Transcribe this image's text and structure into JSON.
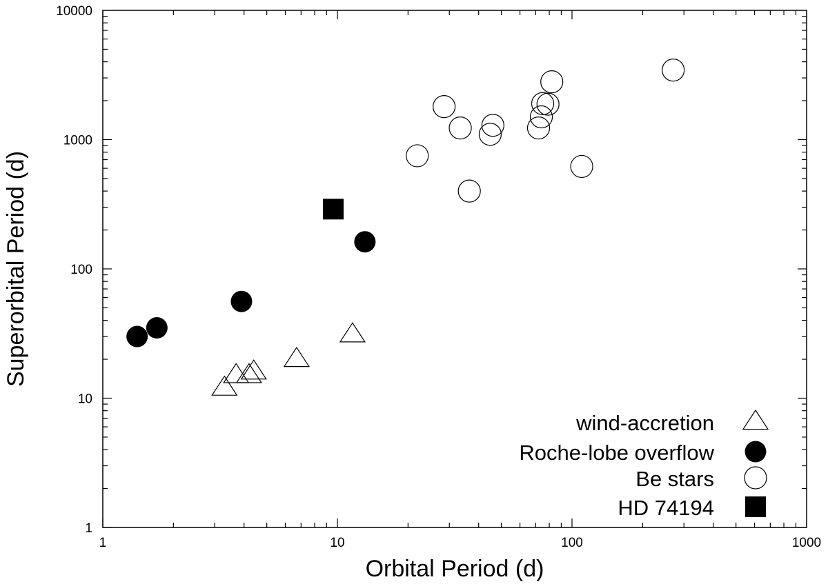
{
  "chart_data": {
    "type": "scatter",
    "title": "",
    "xlabel": "Orbital Period (d)",
    "ylabel": "Superorbital Period (d)",
    "xscale": "log",
    "yscale": "log",
    "xlim": [
      1,
      1000
    ],
    "ylim": [
      1,
      10000
    ],
    "xticks": [
      {
        "value": 1,
        "label": "1"
      },
      {
        "value": 10,
        "label": "10"
      },
      {
        "value": 100,
        "label": "100"
      },
      {
        "value": 1000,
        "label": "1000"
      }
    ],
    "yticks": [
      {
        "value": 1,
        "label": "1"
      },
      {
        "value": 10,
        "label": "10"
      },
      {
        "value": 100,
        "label": "100"
      },
      {
        "value": 1000,
        "label": "1000"
      },
      {
        "value": 10000,
        "label": "10000"
      }
    ],
    "grid": false,
    "legend_position": "bottom-right",
    "series": [
      {
        "name": "wind-accretion",
        "marker": "triangle-open",
        "points": [
          {
            "x": 3.3,
            "y": 12
          },
          {
            "x": 3.7,
            "y": 15
          },
          {
            "x": 4.2,
            "y": 15
          },
          {
            "x": 4.4,
            "y": 16
          },
          {
            "x": 6.7,
            "y": 20
          },
          {
            "x": 11.6,
            "y": 31
          }
        ]
      },
      {
        "name": "Roche-lobe overflow",
        "marker": "circle-filled",
        "points": [
          {
            "x": 1.4,
            "y": 30
          },
          {
            "x": 1.7,
            "y": 35
          },
          {
            "x": 3.9,
            "y": 56
          },
          {
            "x": 13.1,
            "y": 162
          }
        ]
      },
      {
        "name": "Be stars",
        "marker": "circle-open",
        "points": [
          {
            "x": 21.9,
            "y": 750
          },
          {
            "x": 28.5,
            "y": 1800
          },
          {
            "x": 33.4,
            "y": 1230
          },
          {
            "x": 36.5,
            "y": 400
          },
          {
            "x": 44.8,
            "y": 1100
          },
          {
            "x": 46.0,
            "y": 1290
          },
          {
            "x": 72.0,
            "y": 1230
          },
          {
            "x": 74.0,
            "y": 1500
          },
          {
            "x": 75.0,
            "y": 1900
          },
          {
            "x": 79.0,
            "y": 1880
          },
          {
            "x": 82.0,
            "y": 2800
          },
          {
            "x": 110.0,
            "y": 620
          },
          {
            "x": 270.0,
            "y": 3450
          }
        ]
      },
      {
        "name": "HD 74194",
        "marker": "square-filled",
        "points": [
          {
            "x": 9.6,
            "y": 290
          }
        ]
      }
    ]
  }
}
